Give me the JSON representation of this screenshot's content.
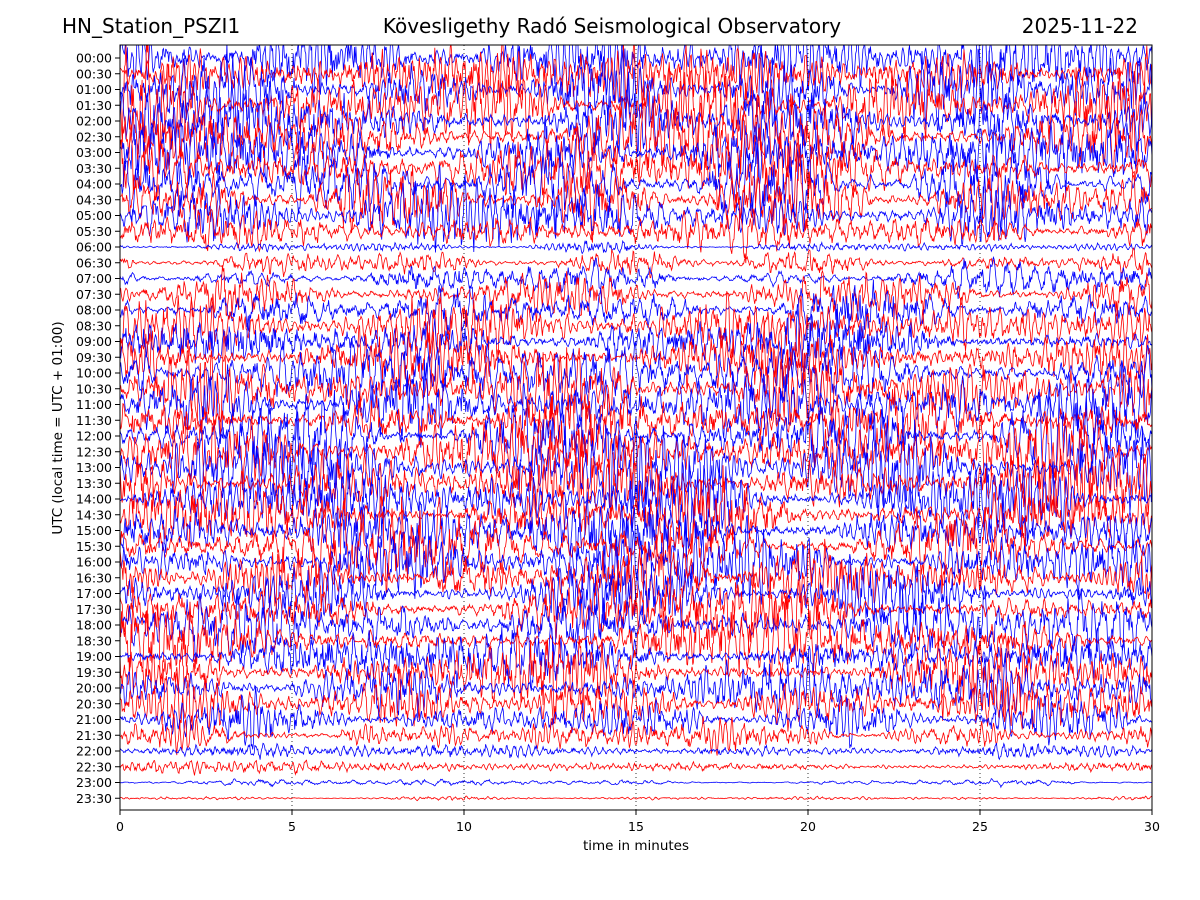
{
  "header": {
    "station": "HN_Station_PSZI1",
    "observatory": "Kövesligethy Radó Seismological Observatory",
    "date": "2025-11-22"
  },
  "chart_data": {
    "type": "line",
    "title": "Kövesligethy Radó Seismological Observatory",
    "xlabel": "time in minutes",
    "ylabel": "UTC (local time = UTC + 01:00)",
    "xlim": [
      0,
      30
    ],
    "xticks": [
      0,
      5,
      10,
      15,
      20,
      25,
      30
    ],
    "grid": "vertical dotted at x ticks",
    "series_colors": [
      "#0000ff",
      "#ff0000"
    ],
    "color_rule": "alternating by row: 00 minute rows blue, 30 minute rows red",
    "rows": [
      "00:00",
      "00:30",
      "01:00",
      "01:30",
      "02:00",
      "02:30",
      "03:00",
      "03:30",
      "04:00",
      "04:30",
      "05:00",
      "05:30",
      "06:00",
      "06:30",
      "07:00",
      "07:30",
      "08:00",
      "08:30",
      "09:00",
      "09:30",
      "10:00",
      "10:30",
      "11:00",
      "11:30",
      "12:00",
      "12:30",
      "13:00",
      "13:30",
      "14:00",
      "14:30",
      "15:00",
      "15:30",
      "16:00",
      "16:30",
      "17:00",
      "17:30",
      "18:00",
      "18:30",
      "19:00",
      "19:30",
      "20:00",
      "20:30",
      "21:00",
      "21:30",
      "22:00",
      "22:30",
      "23:00",
      "23:30"
    ],
    "relative_amplitude": [
      1.0,
      1.0,
      1.0,
      1.0,
      1.0,
      1.0,
      1.0,
      1.0,
      0.95,
      0.9,
      0.85,
      0.6,
      0.15,
      0.3,
      0.45,
      0.55,
      0.7,
      0.8,
      0.9,
      0.9,
      0.95,
      0.95,
      1.0,
      1.0,
      1.0,
      1.0,
      1.0,
      1.0,
      1.0,
      1.0,
      1.0,
      1.0,
      0.95,
      0.9,
      0.85,
      0.8,
      0.85,
      0.9,
      0.9,
      0.85,
      0.8,
      0.7,
      0.6,
      0.4,
      0.25,
      0.18,
      0.08,
      0.05
    ]
  }
}
